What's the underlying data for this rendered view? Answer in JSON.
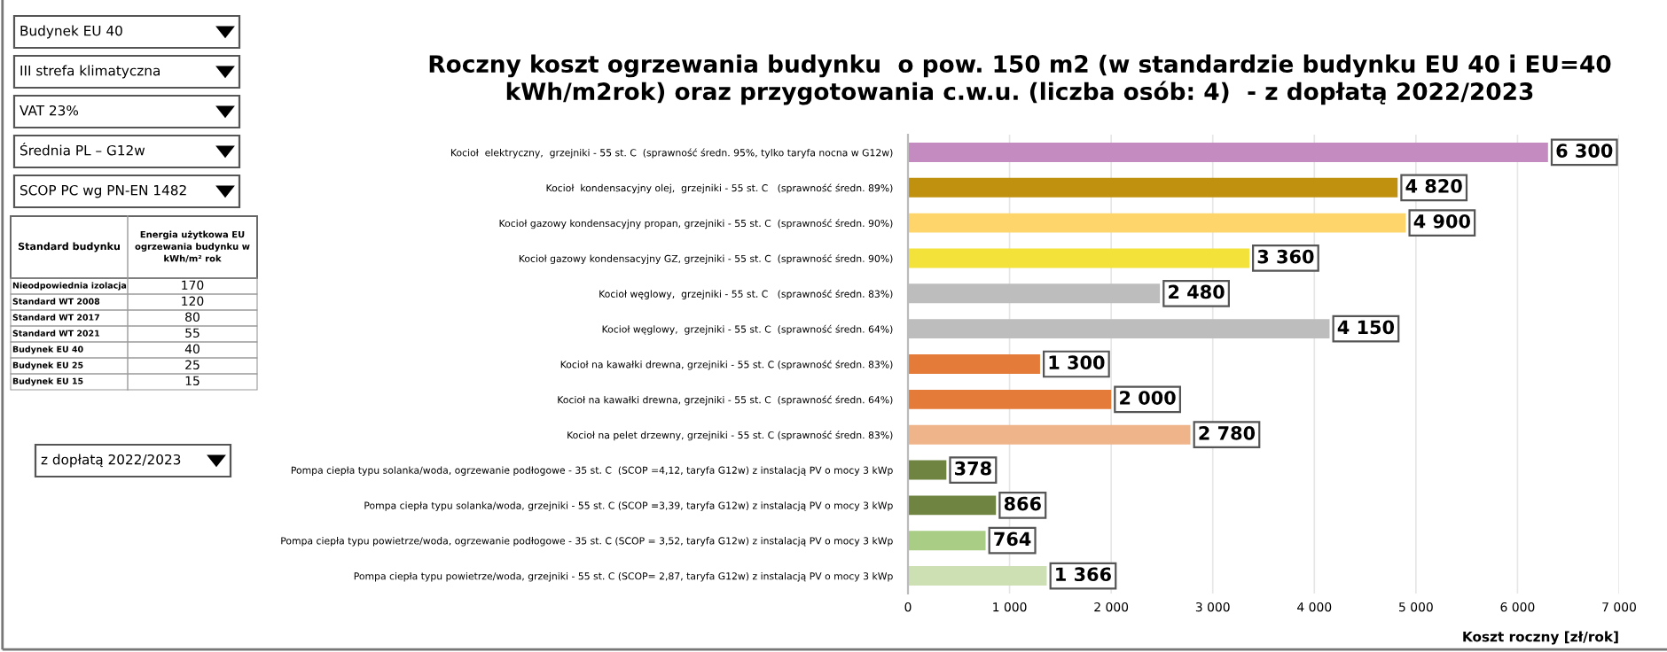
{
  "chart_data": [
    {
      "type": "other",
      "annotations": [
        "Budynek EU 40",
        "III strefa klimatyczna",
        "VAT 23%",
        "Średnia PL – G12w",
        "SCOP PC wg PN-EN 1482",
        "z dopłatą 2022/2023"
      ],
      "xlabel": "Standard budynku",
      "ylabel": "Energia użytkowa EU\nogrzewania budynku w\nkWh/m² rok",
      "data_labels": true,
      "categories": [
        "Nieodpowiednia izolacja",
        "Standard WT 2008",
        "Standard WT 2017",
        "Standard WT 2021",
        "Budynek EU 40",
        "Budynek EU 25",
        "Budynek EU 15"
      ],
      "values": [
        170,
        120,
        80,
        55,
        40,
        25,
        15
      ]
    },
    {
      "type": "bar",
      "orientation": "horizontal",
      "title": "Roczny koszt ogrzewania budynku  o pow. 150 m2 (w standardzie budynku EU 40 i EU=40\nkWh/m2rok) oraz przygotowania c.w.u. (liczba osób: 4)  - z dopłatą 2022/2023",
      "xlabel": "Koszt roczny [zł/rok]",
      "categories": [
        "Kocioł  elektryczny,  grzejniki - 55 st. C  (sprawność średn. 95%, tylko taryfa nocna w G12w)",
        "Kocioł  kondensacyjny olej,  grzejniki - 55 st. C   (sprawność średn. 89%)",
        "Kocioł gazowy kondensacyjny propan, grzejniki - 55 st. C  (sprawność średn. 90%)",
        "Kocioł gazowy kondensacyjny GZ, grzejniki - 55 st. C  (sprawność średn. 90%)",
        "Kocioł węglowy,  grzejniki - 55 st. C   (sprawność średn. 83%)",
        "Kocioł węglowy,  grzejniki - 55 st. C  (sprawność średn. 64%)",
        "Kocioł na kawałki drewna, grzejniki - 55 st. C (sprawność średn. 83%)",
        "Kocioł na kawałki drewna, grzejniki - 55 st. C  (sprawność średn. 64%)",
        "Kocioł na pelet drzewny, grzejniki - 55 st. C (sprawność średn. 83%)",
        "Pompa ciepła typu solanka/woda, ogrzewanie podłogowe - 35 st. C  (SCOP =4,12, taryfa G12w) z instalacją PV o mocy 3 kWp",
        "Pompa ciepła typu solanka/woda, grzejniki - 55 st. C (SCOP =3,39, taryfa G12w) z instalacją PV o mocy 3 kWp",
        "Pompa ciepła typu powietrze/woda, ogrzewanie podłogowe - 35 st. C (SCOP = 3,52, taryfa G12w) z instalacją PV o mocy 3 kWp",
        "Pompa ciepła typu powietrze/woda, grzejniki - 55 st. C (SCOP= 2,87, taryfa G12w) z instalacją PV o mocy 3 kWp"
      ],
      "values": [
        6300,
        4820,
        4900,
        3360,
        2480,
        4150,
        1300,
        2000,
        2780,
        378,
        866,
        764,
        1366
      ],
      "value_labels": [
        "6 300",
        "4 820",
        "4 900",
        "3 360",
        "2 480",
        "4 150",
        "1 300",
        "2 000",
        "2 780",
        "378",
        "866",
        "764",
        "1 366"
      ],
      "colors": [
        "#c38bc0",
        "#c0900f",
        "#fdd56a",
        "#f2e23a",
        "#bdbdbd",
        "#bdbdbd",
        "#e57b39",
        "#e57b39",
        "#f0b48a",
        "#6f8440",
        "#6f8440",
        "#a9cd84",
        "#cde0b4"
      ],
      "xlim": [
        0,
        7000
      ],
      "xticks": [
        0,
        {
          "value": 1000,
          "label": "1 000"
        },
        {
          "value": 2000,
          "label": "2 000"
        },
        {
          "value": 3000,
          "label": "3 000"
        },
        {
          "value": 4000,
          "label": "4 000"
        },
        {
          "value": 5000,
          "label": "5 000"
        },
        {
          "value": 6000,
          "label": "6 000"
        },
        {
          "value": 7000,
          "label": "7 000"
        }
      ],
      "grid": "x",
      "legend": false
    }
  ]
}
